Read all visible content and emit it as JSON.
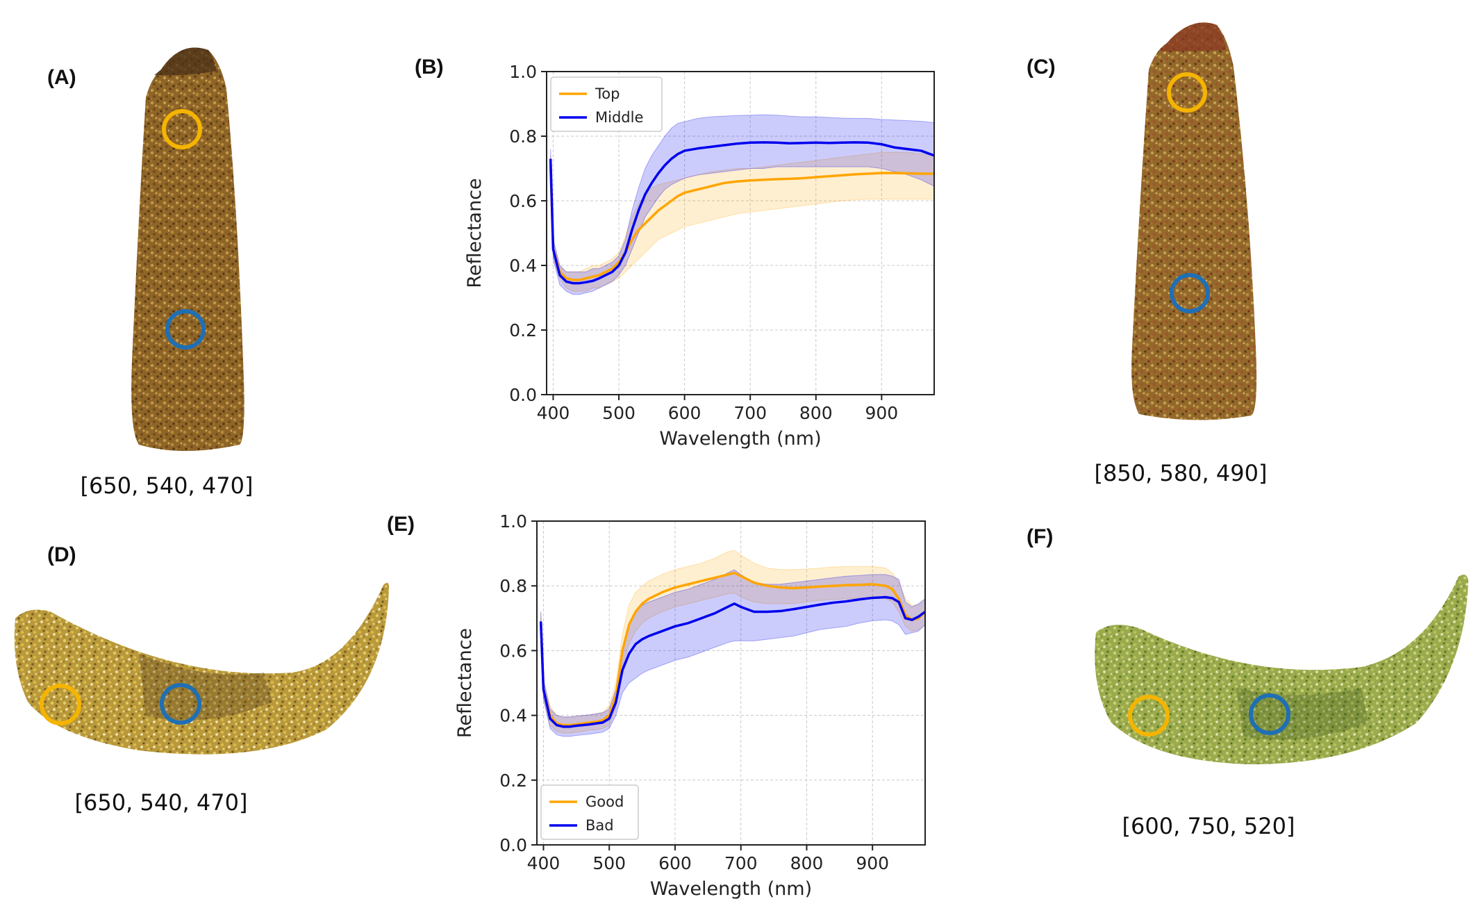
{
  "panels": {
    "a": {
      "label": "(A)",
      "caption": "[650, 540, 470]"
    },
    "b": {
      "label": "(B)"
    },
    "c": {
      "label": "(C)",
      "caption": "[850, 580, 490]"
    },
    "d": {
      "label": "(D)",
      "caption": "[650, 540, 470]"
    },
    "e": {
      "label": "(E)"
    },
    "f": {
      "label": "(F)",
      "caption": "[600, 750, 520]"
    }
  },
  "colors": {
    "orange": "#FFA500",
    "blue": "#0000EE",
    "marker_orange": "#F5B400",
    "marker_blue": "#1F6FB5",
    "banana_brown": "#9B6E2C",
    "banana_yellow": "#C9A83A",
    "banana_green": "#9DB050"
  },
  "chart_data": [
    {
      "id": "b",
      "type": "line",
      "xlabel": "Wavelength (nm)",
      "ylabel": "Reflectance",
      "xlim": [
        390,
        980
      ],
      "ylim": [
        0.0,
        1.0
      ],
      "xticks": [
        "400",
        "500",
        "600",
        "700",
        "800",
        "900"
      ],
      "yticks": [
        "0.0",
        "0.2",
        "0.4",
        "0.6",
        "0.8",
        "1.0"
      ],
      "grid": true,
      "legend_position": "upper-left",
      "x": [
        396,
        400,
        410,
        420,
        430,
        440,
        450,
        460,
        470,
        480,
        490,
        500,
        510,
        520,
        530,
        540,
        550,
        560,
        570,
        580,
        590,
        600,
        620,
        640,
        660,
        680,
        700,
        720,
        740,
        760,
        780,
        800,
        820,
        840,
        860,
        880,
        900,
        920,
        940,
        960,
        980
      ],
      "series": [
        {
          "name": "Top",
          "color": "#FFA500",
          "values": [
            0.71,
            0.45,
            0.38,
            0.36,
            0.355,
            0.355,
            0.36,
            0.365,
            0.37,
            0.38,
            0.39,
            0.41,
            0.44,
            0.48,
            0.51,
            0.53,
            0.55,
            0.57,
            0.585,
            0.6,
            0.615,
            0.625,
            0.635,
            0.645,
            0.655,
            0.66,
            0.663,
            0.665,
            0.667,
            0.668,
            0.67,
            0.673,
            0.676,
            0.679,
            0.682,
            0.684,
            0.686,
            0.686,
            0.685,
            0.684,
            0.684
          ],
          "lower": [
            0.68,
            0.42,
            0.36,
            0.33,
            0.32,
            0.32,
            0.32,
            0.33,
            0.33,
            0.34,
            0.35,
            0.36,
            0.38,
            0.4,
            0.42,
            0.44,
            0.46,
            0.48,
            0.49,
            0.5,
            0.51,
            0.52,
            0.53,
            0.54,
            0.55,
            0.56,
            0.565,
            0.57,
            0.575,
            0.58,
            0.585,
            0.59,
            0.595,
            0.6,
            0.603,
            0.605,
            0.605,
            0.605,
            0.605,
            0.605,
            0.605
          ],
          "upper": [
            0.74,
            0.48,
            0.4,
            0.38,
            0.38,
            0.38,
            0.39,
            0.4,
            0.4,
            0.41,
            0.42,
            0.44,
            0.49,
            0.55,
            0.59,
            0.62,
            0.64,
            0.65,
            0.655,
            0.66,
            0.665,
            0.67,
            0.68,
            0.69,
            0.695,
            0.7,
            0.7,
            0.705,
            0.71,
            0.715,
            0.72,
            0.725,
            0.73,
            0.735,
            0.74,
            0.745,
            0.75,
            0.75,
            0.75,
            0.745,
            0.74
          ]
        },
        {
          "name": "Middle",
          "color": "#0000EE",
          "values": [
            0.73,
            0.45,
            0.37,
            0.35,
            0.345,
            0.345,
            0.348,
            0.352,
            0.36,
            0.37,
            0.38,
            0.4,
            0.44,
            0.51,
            0.57,
            0.62,
            0.655,
            0.685,
            0.71,
            0.73,
            0.745,
            0.755,
            0.762,
            0.767,
            0.772,
            0.777,
            0.78,
            0.781,
            0.78,
            0.778,
            0.779,
            0.78,
            0.779,
            0.78,
            0.781,
            0.78,
            0.775,
            0.765,
            0.76,
            0.755,
            0.74
          ],
          "lower": [
            0.7,
            0.42,
            0.34,
            0.32,
            0.31,
            0.31,
            0.315,
            0.32,
            0.33,
            0.34,
            0.35,
            0.37,
            0.4,
            0.45,
            0.5,
            0.55,
            0.58,
            0.61,
            0.635,
            0.65,
            0.66,
            0.67,
            0.68,
            0.685,
            0.69,
            0.695,
            0.7,
            0.7,
            0.705,
            0.705,
            0.705,
            0.705,
            0.705,
            0.705,
            0.705,
            0.705,
            0.7,
            0.69,
            0.68,
            0.665,
            0.645
          ],
          "upper": [
            0.76,
            0.48,
            0.4,
            0.38,
            0.38,
            0.38,
            0.38,
            0.39,
            0.39,
            0.4,
            0.41,
            0.43,
            0.48,
            0.57,
            0.64,
            0.7,
            0.74,
            0.77,
            0.8,
            0.825,
            0.84,
            0.845,
            0.855,
            0.86,
            0.862,
            0.864,
            0.865,
            0.866,
            0.865,
            0.862,
            0.86,
            0.86,
            0.858,
            0.856,
            0.855,
            0.855,
            0.852,
            0.85,
            0.848,
            0.846,
            0.842
          ]
        }
      ]
    },
    {
      "id": "e",
      "type": "line",
      "xlabel": "Wavelength (nm)",
      "ylabel": "Reflectance",
      "xlim": [
        390,
        980
      ],
      "ylim": [
        0.0,
        1.0
      ],
      "xticks": [
        "400",
        "500",
        "600",
        "700",
        "800",
        "900"
      ],
      "yticks": [
        "0.0",
        "0.2",
        "0.4",
        "0.6",
        "0.8",
        "1.0"
      ],
      "grid": true,
      "legend_position": "lower-left",
      "x": [
        396,
        400,
        410,
        420,
        430,
        440,
        450,
        460,
        470,
        480,
        490,
        500,
        510,
        520,
        530,
        540,
        550,
        560,
        580,
        600,
        620,
        640,
        660,
        680,
        690,
        700,
        720,
        740,
        760,
        780,
        800,
        820,
        840,
        860,
        880,
        900,
        920,
        930,
        940,
        950,
        960,
        970,
        980
      ],
      "series": [
        {
          "name": "Good",
          "color": "#FFA500",
          "values": [
            0.69,
            0.48,
            0.4,
            0.375,
            0.37,
            0.37,
            0.372,
            0.375,
            0.378,
            0.38,
            0.385,
            0.4,
            0.46,
            0.6,
            0.68,
            0.72,
            0.745,
            0.76,
            0.78,
            0.795,
            0.805,
            0.815,
            0.825,
            0.835,
            0.84,
            0.83,
            0.81,
            0.8,
            0.795,
            0.793,
            0.795,
            0.798,
            0.8,
            0.802,
            0.803,
            0.805,
            0.8,
            0.79,
            0.76,
            0.71,
            0.695,
            0.7,
            0.72
          ],
          "lower": [
            0.66,
            0.45,
            0.37,
            0.35,
            0.345,
            0.345,
            0.348,
            0.35,
            0.355,
            0.355,
            0.36,
            0.37,
            0.42,
            0.55,
            0.62,
            0.66,
            0.685,
            0.7,
            0.72,
            0.735,
            0.745,
            0.755,
            0.765,
            0.775,
            0.778,
            0.765,
            0.75,
            0.745,
            0.745,
            0.745,
            0.75,
            0.755,
            0.758,
            0.76,
            0.762,
            0.765,
            0.76,
            0.75,
            0.72,
            0.675,
            0.66,
            0.665,
            0.68
          ],
          "upper": [
            0.72,
            0.51,
            0.43,
            0.4,
            0.395,
            0.395,
            0.395,
            0.4,
            0.4,
            0.405,
            0.41,
            0.43,
            0.5,
            0.65,
            0.74,
            0.78,
            0.8,
            0.815,
            0.835,
            0.85,
            0.86,
            0.87,
            0.885,
            0.905,
            0.91,
            0.895,
            0.87,
            0.855,
            0.85,
            0.85,
            0.852,
            0.855,
            0.858,
            0.86,
            0.86,
            0.86,
            0.855,
            0.84,
            0.81,
            0.76,
            0.74,
            0.74,
            0.76
          ]
        },
        {
          "name": "Bad",
          "color": "#0000EE",
          "values": [
            0.69,
            0.48,
            0.39,
            0.37,
            0.365,
            0.365,
            0.368,
            0.37,
            0.372,
            0.375,
            0.378,
            0.39,
            0.44,
            0.54,
            0.59,
            0.62,
            0.635,
            0.645,
            0.66,
            0.675,
            0.685,
            0.7,
            0.715,
            0.735,
            0.745,
            0.735,
            0.72,
            0.72,
            0.722,
            0.728,
            0.735,
            0.742,
            0.748,
            0.752,
            0.758,
            0.763,
            0.765,
            0.762,
            0.75,
            0.7,
            0.695,
            0.705,
            0.72
          ],
          "lower": [
            0.66,
            0.45,
            0.36,
            0.34,
            0.335,
            0.335,
            0.338,
            0.34,
            0.342,
            0.345,
            0.348,
            0.36,
            0.4,
            0.47,
            0.5,
            0.515,
            0.53,
            0.54,
            0.555,
            0.57,
            0.58,
            0.595,
            0.61,
            0.625,
            0.63,
            0.63,
            0.63,
            0.635,
            0.64,
            0.645,
            0.655,
            0.665,
            0.67,
            0.675,
            0.685,
            0.692,
            0.695,
            0.692,
            0.68,
            0.65,
            0.655,
            0.66,
            0.68
          ],
          "upper": [
            0.72,
            0.51,
            0.42,
            0.4,
            0.395,
            0.395,
            0.398,
            0.4,
            0.402,
            0.405,
            0.408,
            0.42,
            0.48,
            0.61,
            0.68,
            0.72,
            0.74,
            0.75,
            0.765,
            0.78,
            0.79,
            0.805,
            0.82,
            0.84,
            0.85,
            0.835,
            0.81,
            0.805,
            0.805,
            0.81,
            0.815,
            0.82,
            0.825,
            0.83,
            0.832,
            0.835,
            0.835,
            0.83,
            0.82,
            0.75,
            0.735,
            0.745,
            0.76
          ]
        }
      ]
    }
  ]
}
